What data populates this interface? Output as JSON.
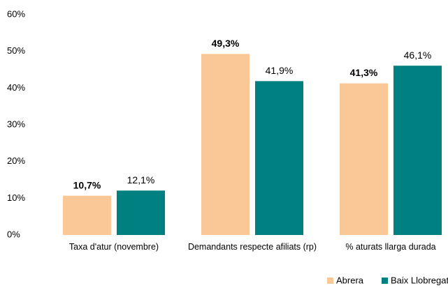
{
  "chart_data": {
    "type": "bar",
    "categories": [
      "Taxa d'atur (novembre)",
      "Demandants respecte afiliats (rp)",
      "% aturats llarga durada"
    ],
    "series": [
      {
        "name": "Abrera",
        "color": "#fac896",
        "values": [
          10.7,
          49.3,
          41.3
        ],
        "value_labels": [
          "10,7%",
          "49,3%",
          "41,3%"
        ]
      },
      {
        "name": "Baix Llobregat",
        "color": "#008080",
        "values": [
          12.1,
          41.9,
          46.1
        ],
        "value_labels": [
          "12,1%",
          "41,9%",
          "46,1%"
        ]
      }
    ],
    "ylim": [
      0,
      60
    ],
    "yticks": [
      {
        "value": 0,
        "label": "0%"
      },
      {
        "value": 10,
        "label": "10%"
      },
      {
        "value": 20,
        "label": "20%"
      },
      {
        "value": 30,
        "label": "30%"
      },
      {
        "value": 40,
        "label": "40%"
      },
      {
        "value": 50,
        "label": "50%"
      },
      {
        "value": 60,
        "label": "60%"
      }
    ],
    "grid": false,
    "legend": "bottom-right"
  }
}
